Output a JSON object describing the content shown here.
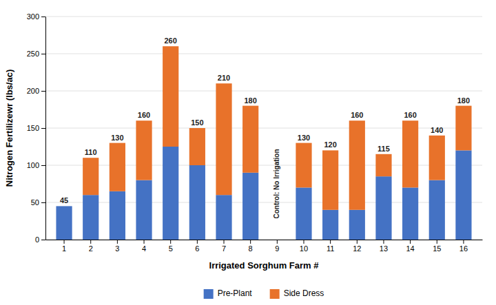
{
  "chart_data": {
    "type": "bar",
    "stacked": true,
    "xlabel": "Irrigated Sorghum Farm #",
    "ylabel": "Nitrogen Fertilizewr (lbs/ac)",
    "categories": [
      "1",
      "2",
      "3",
      "4",
      "5",
      "6",
      "7",
      "8",
      "9",
      "10",
      "11",
      "12",
      "13",
      "14",
      "15",
      "16"
    ],
    "series": [
      {
        "name": "Pre-Plant",
        "color": "#4472C4",
        "values": [
          45,
          60,
          65,
          80,
          125,
          100,
          60,
          90,
          0,
          70,
          40,
          40,
          85,
          70,
          80,
          120
        ]
      },
      {
        "name": "Side Dress",
        "color": "#E8722A",
        "values": [
          0,
          50,
          65,
          80,
          135,
          50,
          150,
          90,
          0,
          60,
          80,
          120,
          30,
          90,
          60,
          60
        ]
      }
    ],
    "totals": [
      45,
      110,
      130,
      160,
      260,
      150,
      210,
      180,
      null,
      130,
      120,
      160,
      115,
      160,
      140,
      180
    ],
    "annotations": [
      {
        "text": "Control: No Irrigation",
        "x": "9",
        "y": 75
      }
    ],
    "ylim": [
      0,
      300
    ],
    "yticks": [
      0,
      50,
      100,
      150,
      200,
      250,
      300
    ],
    "grid": true,
    "legend": "bottom"
  }
}
